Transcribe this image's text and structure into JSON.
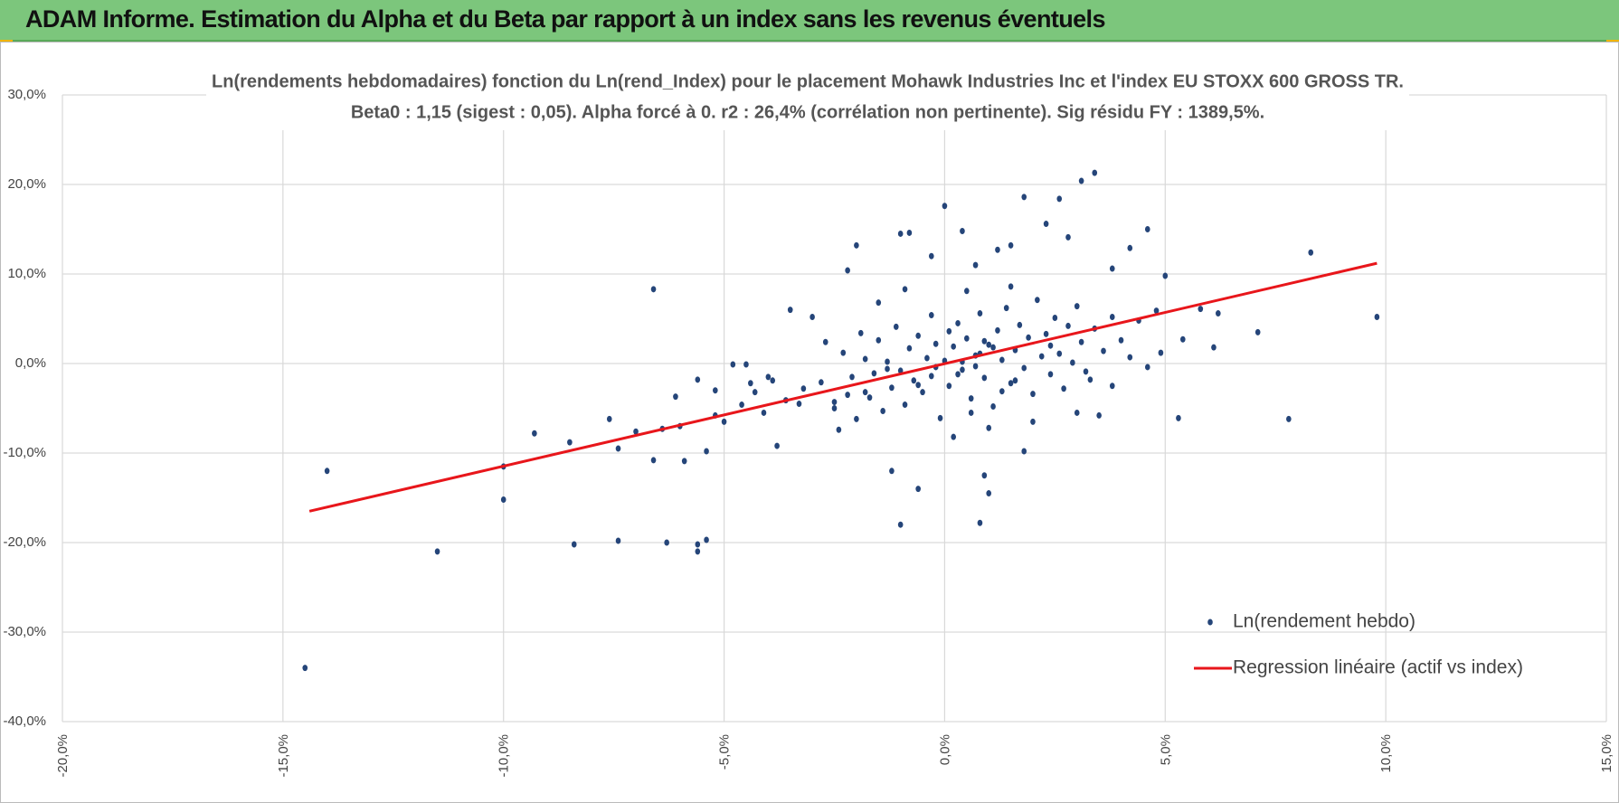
{
  "header": {
    "title": "ADAM Informe. Estimation du Alpha et du Beta par rapport à un index sans les revenus éventuels"
  },
  "chart_data": {
    "type": "scatter",
    "title": "Ln(rendements hebdomadaires) fonction du Ln(rend_Index) pour le placement Mohawk Industries Inc et l'index EU STOXX 600 GROSS TR.",
    "subtitle": "Beta0 : 1,15 (sigest : 0,05).  Alpha forcé à 0. r2 : 26,4% (corrélation non pertinente). Sig résidu FY : 1389,5%.",
    "xlim": [
      -20,
      15
    ],
    "ylim": [
      -40,
      30
    ],
    "xticks": [
      {
        "value": -20,
        "label": "-20,0%"
      },
      {
        "value": -15,
        "label": "-15,0%"
      },
      {
        "value": -10,
        "label": "-10,0%"
      },
      {
        "value": -5,
        "label": "-5,0%"
      },
      {
        "value": 0,
        "label": "0,0%"
      },
      {
        "value": 5,
        "label": "5,0%"
      },
      {
        "value": 10,
        "label": "10,0%"
      },
      {
        "value": 15,
        "label": "15,0%"
      }
    ],
    "yticks": [
      {
        "value": -40,
        "label": "-40,0%"
      },
      {
        "value": -30,
        "label": "-30,0%"
      },
      {
        "value": -20,
        "label": "-20,0%"
      },
      {
        "value": -10,
        "label": "-10,0%"
      },
      {
        "value": 0,
        "label": "0,0%"
      },
      {
        "value": 10,
        "label": "10,0%"
      },
      {
        "value": 20,
        "label": "20,0%"
      },
      {
        "value": 30,
        "label": "30,0%"
      }
    ],
    "grid": true,
    "legend": "bottom-right",
    "series": [
      {
        "name": "Ln(rendement hebdo)",
        "color": "#254579",
        "kind": "scatter",
        "x": [
          -14.5,
          -14,
          -11.5,
          -10,
          -10,
          -9.3,
          -8.5,
          -8.4,
          -7.6,
          -7.4,
          -7.4,
          -7,
          -6.6,
          -6.6,
          -6.4,
          -6.3,
          -6.1,
          -6,
          -5.9,
          -5.6,
          -5.6,
          -5.6,
          -5.4,
          -5.4,
          -5.2,
          -5,
          -4.8,
          -4.5,
          -4.4,
          -4,
          -3.8,
          -3.5,
          -3.3,
          -3,
          -2.5,
          -2.2,
          -2,
          -1.8,
          -1.2,
          -1,
          -1,
          -0.8,
          -0.6,
          -0.3,
          0,
          0.4,
          0.7,
          0.8,
          0.9,
          1,
          1.2,
          1.5,
          1.8,
          1.8,
          2.3,
          2.6,
          2.8,
          3,
          3.1,
          3.4,
          3.5,
          3.8,
          3.8,
          4.2,
          4.6,
          4.6,
          5,
          5.3,
          5.4,
          5.8,
          6.1,
          6.2,
          7.1,
          7.8,
          8.3,
          9.8,
          -2.8,
          -2.5,
          -2.3,
          -2.1,
          -2,
          -1.9,
          -1.8,
          -1.7,
          -1.6,
          -1.5,
          -1.4,
          -1.3,
          -1.2,
          -1.1,
          -1,
          -0.9,
          -0.8,
          -0.7,
          -0.6,
          -0.5,
          -0.4,
          -0.3,
          -0.2,
          -0.1,
          0,
          0.1,
          0.2,
          0.3,
          0.4,
          0.5,
          0.6,
          0.7,
          0.8,
          0.9,
          1,
          1.1,
          1.2,
          1.3,
          1.4,
          1.5,
          1.6,
          1.7,
          1.8,
          1.9,
          2,
          2.1,
          2.2,
          2.3,
          2.4,
          2.5,
          2.6,
          2.7,
          2.8,
          2.9,
          3,
          3.1,
          3.2,
          3.4,
          3.6,
          3.8,
          4,
          4.2,
          4.4,
          -3.2,
          -3.6,
          -4.1,
          -4.3,
          -2.7,
          -2.4,
          -1.5,
          -0.9,
          0.2,
          0.5,
          1,
          1.5,
          2,
          -0.3,
          0.6,
          1.3,
          0.1,
          -0.6,
          0.3,
          0.8,
          0.4,
          0.7,
          1.1,
          -0.2,
          0.9,
          1.6,
          -1.3,
          2.4,
          -2.2,
          3.3,
          -3.9,
          -4.6,
          -5.2,
          4.9,
          4.8
        ],
        "values": [
          -34,
          -12,
          -21,
          -11.5,
          -15.2,
          -7.8,
          -8.8,
          -20.2,
          -6.2,
          -9.5,
          -19.8,
          -7.6,
          8.3,
          -10.8,
          -7.3,
          -20,
          -3.7,
          -7,
          -10.9,
          -1.8,
          -20.2,
          -21,
          -19.7,
          -9.8,
          -3,
          -6.5,
          -0.1,
          -0.1,
          -2.2,
          -1.5,
          -9.2,
          6,
          -4.5,
          5.2,
          -5,
          10.4,
          13.2,
          -3.2,
          -12,
          -18,
          14.5,
          14.6,
          -14,
          12,
          17.6,
          14.8,
          11,
          -17.8,
          -12.5,
          -14.5,
          12.7,
          13.2,
          18.6,
          -9.8,
          15.6,
          18.4,
          14.1,
          -5.5,
          20.4,
          21.3,
          -5.8,
          10.6,
          -2.5,
          12.9,
          15,
          -0.4,
          9.8,
          -6.1,
          2.7,
          6.1,
          1.8,
          5.6,
          3.5,
          -6.2,
          12.4,
          5.2,
          -2.1,
          -4.3,
          1.2,
          -1.5,
          -6.2,
          3.4,
          0.5,
          -3.8,
          -1.1,
          2.6,
          -5.3,
          0.2,
          -2.7,
          4.1,
          -0.8,
          -4.6,
          1.7,
          -1.9,
          3.1,
          -3.2,
          0.6,
          -1.4,
          2.2,
          -6.1,
          0.3,
          -2.5,
          1.9,
          4.5,
          -0.7,
          2.8,
          -3.9,
          0.9,
          5.6,
          -1.6,
          2.1,
          -4.8,
          3.7,
          0.4,
          6.2,
          -2.2,
          1.5,
          4.3,
          -0.5,
          2.9,
          -3.4,
          7.1,
          0.8,
          3.3,
          -1.2,
          5.1,
          1.1,
          -2.8,
          4.2,
          0.1,
          6.4,
          2.4,
          -0.9,
          3.9,
          1.4,
          5.2,
          2.6,
          0.7,
          4.8,
          -2.8,
          -4.1,
          -5.5,
          -3.2,
          2.4,
          -7.4,
          6.8,
          8.3,
          -8.2,
          8.1,
          -7.2,
          8.6,
          -6.5,
          5.4,
          -5.5,
          -3.1,
          3.6,
          -2.4,
          -1.2,
          1.1,
          0.2,
          -0.3,
          1.8,
          -0.4,
          2.5,
          -1.9,
          -0.6,
          2,
          -3.5,
          -1.8,
          -1.9,
          -4.6,
          -5.8,
          1.2,
          5.9
        ]
      },
      {
        "name": "Regression linéaire (actif vs index)",
        "color": "#e8161b",
        "kind": "line",
        "x": [
          -14.4,
          9.8
        ],
        "values": [
          -16.5,
          11.2
        ]
      }
    ]
  }
}
